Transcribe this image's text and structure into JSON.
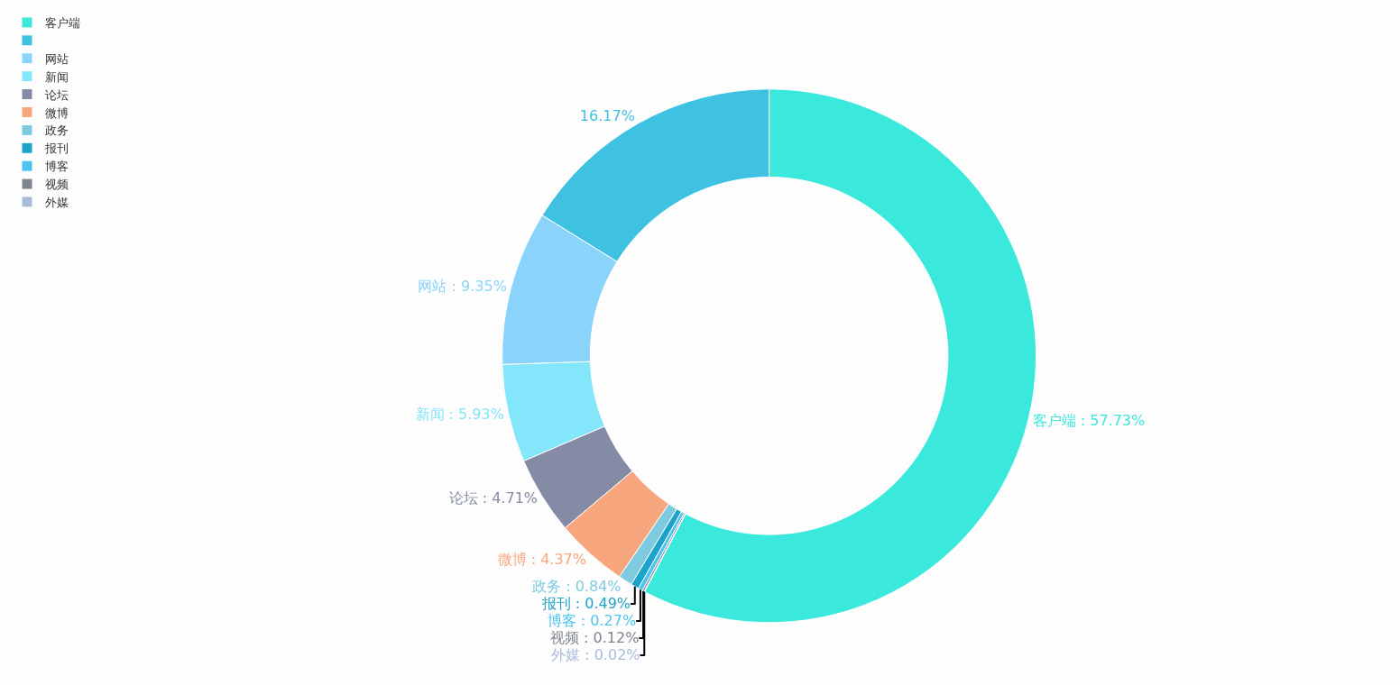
{
  "chart_data": {
    "type": "donut",
    "categories": [
      "客户端",
      null,
      "网站",
      "新闻",
      "论坛",
      "微博",
      "政务",
      "报刊",
      "博客",
      "视频",
      "外媒"
    ],
    "values": [
      57.73,
      16.17,
      9.35,
      5.93,
      4.71,
      4.37,
      0.84,
      0.49,
      0.27,
      0.12,
      0.02
    ],
    "colors": [
      "#3ae8dc",
      "#3fc1e1",
      "#8ad4fb",
      "#84e6fa",
      "#858ba5",
      "#f8a67d",
      "#7ecbe0",
      "#1ea3c8",
      "#4cc3f0",
      "#7f848f",
      "#a9bbdb"
    ],
    "value_labels": [
      "客户端 : 57.73%",
      "16.17%",
      "网站 : 9.35%",
      "新闻 : 5.93%",
      "论坛 : 4.71%",
      "微博 : 4.37%",
      "政务 : 0.84%",
      "报刊 : 0.49%",
      "博客 : 0.27%",
      "视频 : 0.12%",
      "外媒 : 0.02%"
    ],
    "legend": "top left"
  }
}
